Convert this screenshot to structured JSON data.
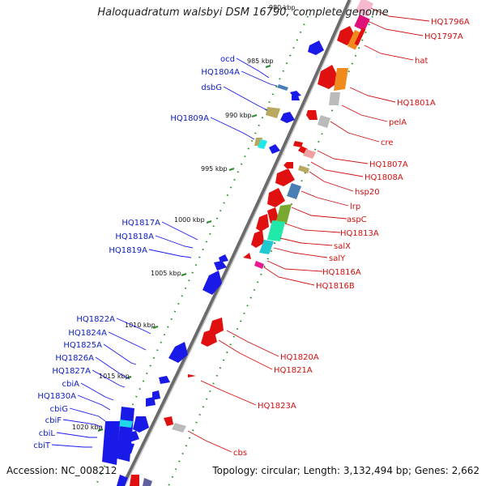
{
  "title": "Haloquadratum walsbyi DSM 16790, complete genome",
  "footer": {
    "accession": "Accession: NC_008212",
    "topology": "Topology: circular; Length: 3,132,494 bp; Genes: 2,662"
  },
  "scale": {
    "top_partial": "980 kbp",
    "ticks": [
      "985 kbp",
      "990 kbp",
      "995 kbp",
      "1000 kbp",
      "1005 kbp",
      "1010 kbp",
      "1015 kbp",
      "1020 kbp"
    ]
  },
  "colors": {
    "forward_strand": "#1a1ae8",
    "reverse_strand": "#e01010",
    "backbone": "#6a6a6a",
    "tick": "#2a8a2a",
    "left_label": "#1020c0",
    "right_label": "#d01010"
  },
  "left_labels": [
    "ocd",
    "HQ1804A",
    "dsbG",
    "HQ1809A",
    "HQ1817A",
    "HQ1818A",
    "HQ1819A",
    "HQ1822A",
    "HQ1824A",
    "HQ1825A",
    "HQ1826A",
    "HQ1827A",
    "cbiA",
    "HQ1830A",
    "cbiG",
    "cbiF",
    "cbiL",
    "cbiT"
  ],
  "right_labels": [
    "HQ1796A",
    "HQ1797A",
    "hat",
    "HQ1801A",
    "pelA",
    "cre",
    "HQ1807A",
    "HQ1808A",
    "hsp20",
    "lrp",
    "aspC",
    "HQ1813A",
    "salX",
    "salY",
    "HQ1816A",
    "HQ1816B",
    "HQ1820A",
    "HQ1821A",
    "HQ1823A",
    "cbs"
  ]
}
